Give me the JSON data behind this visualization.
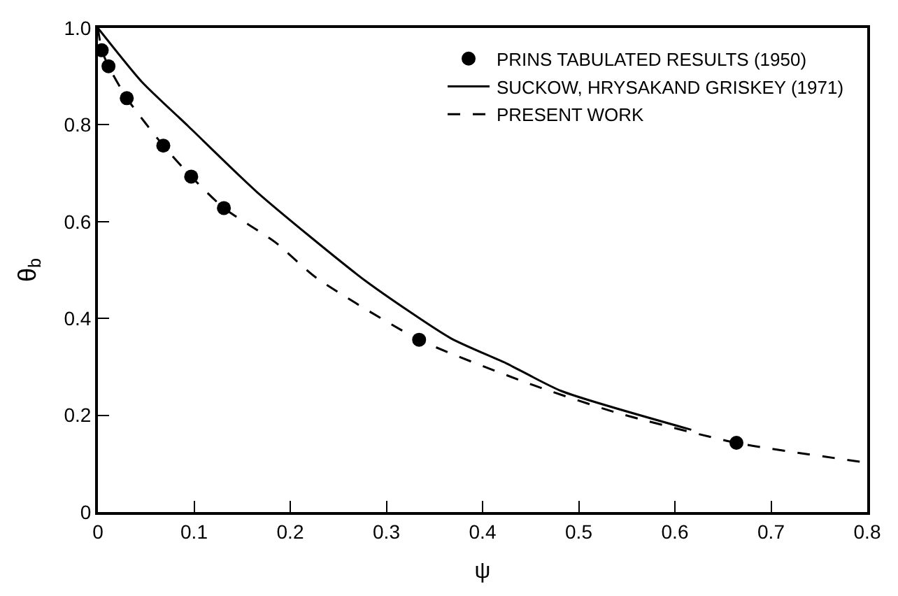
{
  "chart_data": {
    "type": "line",
    "xlabel": "ψ",
    "ylabel": "θ$_{b}$",
    "xlim": [
      0,
      0.8
    ],
    "ylim": [
      0,
      1.0
    ],
    "xticks": [
      0,
      {
        "value": 0.1,
        "label": "0.1"
      },
      0.2,
      0.3,
      0.4,
      0.5,
      0.6,
      0.7,
      0.8
    ],
    "yticks": [
      0,
      0.2,
      0.4,
      0.6,
      0.8,
      {
        "value": 1.0,
        "label": "1.0"
      }
    ],
    "legend": "top right",
    "series": [
      {
        "name": "PRINS TABULATED RESULTS (1950)",
        "type": "scatter",
        "marker": "circle",
        "color": "#000000",
        "x": [
          0.004,
          0.011,
          0.03,
          0.068,
          0.097,
          0.131,
          0.334,
          0.664
        ],
        "values": [
          0.954,
          0.921,
          0.855,
          0.757,
          0.693,
          0.628,
          0.356,
          0.143
        ]
      },
      {
        "name": "SUCKOW, HRYSAKAND GRISKEY (1971)",
        "line_style": "solid",
        "color": "#000000",
        "x": [
          0,
          0.046,
          0.094,
          0.166,
          0.278,
          0.367,
          0.425,
          0.482,
          0.617
        ],
        "values": [
          1.0,
          0.888,
          0.797,
          0.66,
          0.478,
          0.359,
          0.307,
          0.25,
          0.17
        ]
      },
      {
        "name": "PRESENT WORK",
        "line_style": "dashed",
        "color": "#000000",
        "x": [
          0,
          0.004,
          0.011,
          0.03,
          0.068,
          0.097,
          0.131,
          0.184,
          0.227,
          0.334,
          0.453,
          0.54,
          0.664,
          0.8
        ],
        "values": [
          1.0,
          0.954,
          0.921,
          0.855,
          0.757,
          0.693,
          0.628,
          0.558,
          0.484,
          0.356,
          0.262,
          0.205,
          0.143,
          0.102
        ]
      }
    ]
  }
}
